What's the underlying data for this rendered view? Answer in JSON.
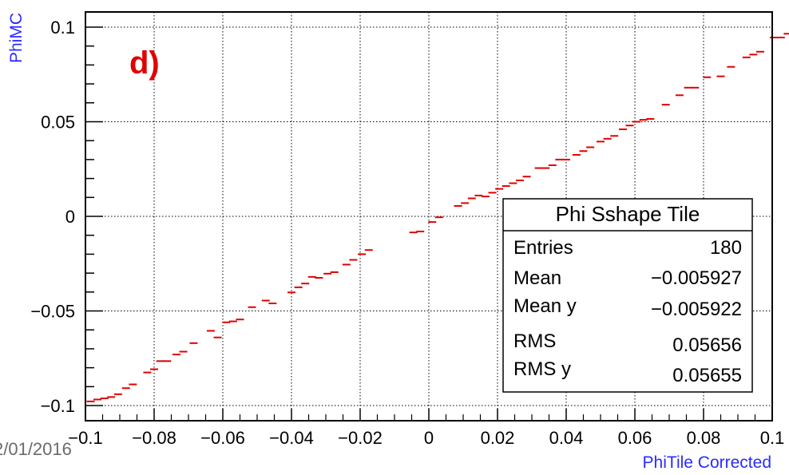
{
  "chart_data": {
    "type": "scatter",
    "xlabel": "PhiTile Corrected",
    "ylabel": "PhiMC",
    "xlim": [
      -0.1,
      0.1
    ],
    "ylim": [
      -0.108,
      0.108
    ],
    "x_ticks": [
      -0.1,
      -0.08,
      -0.06,
      -0.04,
      -0.02,
      0,
      0.02,
      0.04,
      0.06,
      0.08,
      0.1
    ],
    "x_tick_labels": [
      "−0.1",
      "−0.08",
      "−0.06",
      "−0.04",
      "−0.02",
      "0",
      "0.02",
      "0.04",
      "0.06",
      "0.08",
      "0.1"
    ],
    "y_ticks": [
      -0.1,
      -0.05,
      0,
      0.05,
      0.1
    ],
    "y_tick_labels": [
      "−0.1",
      "−0.05",
      "0",
      "0.05",
      "0.1"
    ],
    "grid": true,
    "marker_color": "#e00000",
    "points": [
      [
        -0.0985,
        -0.0978
      ],
      [
        -0.0965,
        -0.0968
      ],
      [
        -0.0945,
        -0.0962
      ],
      [
        -0.0925,
        -0.0955
      ],
      [
        -0.0905,
        -0.094
      ],
      [
        -0.0882,
        -0.0908
      ],
      [
        -0.0862,
        -0.0888
      ],
      [
        -0.082,
        -0.0825
      ],
      [
        -0.08,
        -0.0808
      ],
      [
        -0.0782,
        -0.0765
      ],
      [
        -0.0762,
        -0.0765
      ],
      [
        -0.0735,
        -0.073
      ],
      [
        -0.0715,
        -0.0715
      ],
      [
        -0.0685,
        -0.067
      ],
      [
        -0.0635,
        -0.0605
      ],
      [
        -0.0615,
        -0.064
      ],
      [
        -0.059,
        -0.056
      ],
      [
        -0.057,
        -0.0555
      ],
      [
        -0.055,
        -0.0545
      ],
      [
        -0.0515,
        -0.048
      ],
      [
        -0.0475,
        -0.0445
      ],
      [
        -0.0455,
        -0.046
      ],
      [
        -0.04,
        -0.0402
      ],
      [
        -0.038,
        -0.0375
      ],
      [
        -0.036,
        -0.0355
      ],
      [
        -0.034,
        -0.032
      ],
      [
        -0.032,
        -0.0325
      ],
      [
        -0.0295,
        -0.0303
      ],
      [
        -0.0275,
        -0.0295
      ],
      [
        -0.024,
        -0.0255
      ],
      [
        -0.022,
        -0.023
      ],
      [
        -0.0195,
        -0.02
      ],
      [
        -0.0175,
        -0.0178
      ],
      [
        -0.0045,
        -0.0085
      ],
      [
        -0.0025,
        -0.008
      ],
      [
        0.001,
        -0.003
      ],
      [
        0.003,
        -0.0005
      ],
      [
        0.0085,
        0.0055
      ],
      [
        0.0105,
        0.007
      ],
      [
        0.0125,
        0.0095
      ],
      [
        0.0145,
        0.011
      ],
      [
        0.0165,
        0.0105
      ],
      [
        0.0185,
        0.0125
      ],
      [
        0.0205,
        0.0145
      ],
      [
        0.0225,
        0.016
      ],
      [
        0.0245,
        0.0175
      ],
      [
        0.0265,
        0.019
      ],
      [
        0.0285,
        0.021
      ],
      [
        0.032,
        0.0255
      ],
      [
        0.034,
        0.0255
      ],
      [
        0.036,
        0.027
      ],
      [
        0.038,
        0.03
      ],
      [
        0.04,
        0.03
      ],
      [
        0.043,
        0.0325
      ],
      [
        0.045,
        0.0345
      ],
      [
        0.047,
        0.0365
      ],
      [
        0.05,
        0.0395
      ],
      [
        0.052,
        0.041
      ],
      [
        0.054,
        0.0425
      ],
      [
        0.0565,
        0.046
      ],
      [
        0.0585,
        0.048
      ],
      [
        0.0605,
        0.05
      ],
      [
        0.0625,
        0.051
      ],
      [
        0.0645,
        0.0515
      ],
      [
        0.069,
        0.059
      ],
      [
        0.073,
        0.064
      ],
      [
        0.0755,
        0.068
      ],
      [
        0.0775,
        0.068
      ],
      [
        0.081,
        0.0735
      ],
      [
        0.085,
        0.074
      ],
      [
        0.088,
        0.079
      ],
      [
        0.0925,
        0.084
      ],
      [
        0.0945,
        0.0855
      ],
      [
        0.0965,
        0.087
      ],
      [
        0.1005,
        0.0945
      ],
      [
        0.1025,
        0.0945
      ],
      [
        0.1045,
        0.0965
      ]
    ],
    "panel_label": "d)",
    "stats_box": {
      "title": "Phi Sshape Tile",
      "rows": [
        {
          "label": "Entries",
          "value": "180"
        },
        {
          "label": "Mean",
          "value": "−0.005927"
        },
        {
          "label": "Mean y",
          "value": "−0.005922"
        },
        {
          "label": "RMS",
          "value": "0.05656"
        },
        {
          "label": "RMS y",
          "value": "0.05655"
        }
      ]
    },
    "footer_text": "2/01/2016"
  }
}
